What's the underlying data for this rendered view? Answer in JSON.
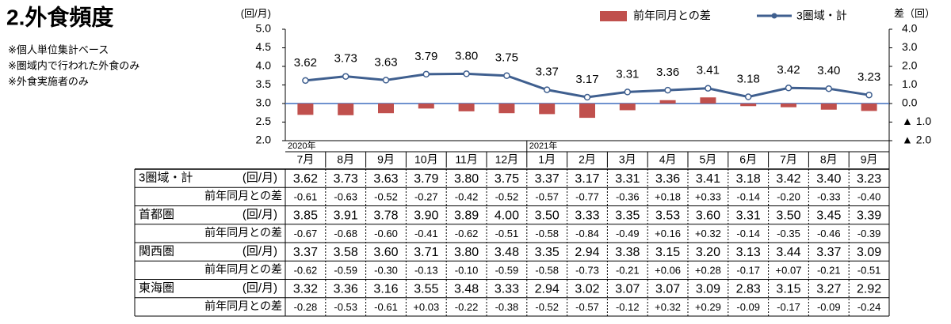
{
  "title": "2.外食頻度",
  "notes": [
    "※個人単位集計ベース",
    "※圏域内で行われた外食のみ",
    "※外食実施者のみ"
  ],
  "chart_data": {
    "type": "bar-line",
    "categories": [
      "7月",
      "8月",
      "9月",
      "10月",
      "11月",
      "12月",
      "1月",
      "2月",
      "3月",
      "4月",
      "5月",
      "6月",
      "7月",
      "8月",
      "9月"
    ],
    "years": [
      "2020年",
      null,
      null,
      null,
      null,
      null,
      "2021年",
      null,
      null,
      null,
      null,
      null,
      null,
      null,
      null
    ],
    "y_label": "(回/月)",
    "y2_label": "差（回）",
    "ylim": [
      2,
      5
    ],
    "yticks": [
      {
        "value": 2,
        "label": "2.0"
      },
      {
        "value": 2.5,
        "label": "2.5"
      },
      {
        "value": 3,
        "label": "3.0"
      },
      {
        "value": 3.5,
        "label": "3.5"
      },
      {
        "value": 4,
        "label": "4.0"
      },
      {
        "value": 4.5,
        "label": "4.5"
      },
      {
        "value": 5,
        "label": "5.0"
      }
    ],
    "y2lim": [
      -2,
      4
    ],
    "y2ticks": [
      {
        "value": -2,
        "label": "▲ 2.0"
      },
      {
        "value": -1,
        "label": "▲ 1.0"
      },
      {
        "value": 0,
        "label": "0.0"
      },
      {
        "value": 1,
        "label": "1.0"
      },
      {
        "value": 2,
        "label": "2.0"
      },
      {
        "value": 3,
        "label": "3.0"
      },
      {
        "value": 4,
        "label": "4.0"
      }
    ],
    "grid": false,
    "legend": "top",
    "series": [
      {
        "name": "前年同月との差",
        "type": "bar",
        "axis": "y2",
        "color": "#c0504d",
        "values": [
          -0.61,
          -0.63,
          -0.52,
          -0.27,
          -0.42,
          -0.52,
          -0.57,
          -0.77,
          -0.36,
          0.18,
          0.33,
          -0.14,
          -0.2,
          -0.33,
          -0.4
        ]
      },
      {
        "name": "3圏域・計",
        "type": "line",
        "color": "#3f5f8f",
        "values": [
          3.62,
          3.73,
          3.63,
          3.79,
          3.8,
          3.75,
          3.37,
          3.17,
          3.31,
          3.36,
          3.41,
          3.18,
          3.42,
          3.4,
          3.23
        ],
        "value_labels": [
          "3.62",
          "3.73",
          "3.63",
          "3.79",
          "3.80",
          "3.75",
          "3.37",
          "3.17",
          "3.31",
          "3.36",
          "3.41",
          "3.18",
          "3.42",
          "3.40",
          "3.23"
        ]
      }
    ]
  },
  "table": {
    "regions": [
      {
        "name": "3圏域・計",
        "unit": "(回/月)",
        "diff_label": "前年同月との差",
        "values": [
          "3.62",
          "3.73",
          "3.63",
          "3.79",
          "3.80",
          "3.75",
          "3.37",
          "3.17",
          "3.31",
          "3.36",
          "3.41",
          "3.18",
          "3.42",
          "3.40",
          "3.23"
        ],
        "diffs": [
          "-0.61",
          "-0.63",
          "-0.52",
          "-0.27",
          "-0.42",
          "-0.52",
          "-0.57",
          "-0.77",
          "-0.36",
          "+0.18",
          "+0.33",
          "-0.14",
          "-0.20",
          "-0.33",
          "-0.40"
        ]
      },
      {
        "name": "首都圏",
        "unit": "(回/月)",
        "diff_label": "前年同月との差",
        "values": [
          "3.85",
          "3.91",
          "3.78",
          "3.90",
          "3.89",
          "4.00",
          "3.50",
          "3.33",
          "3.35",
          "3.53",
          "3.60",
          "3.31",
          "3.50",
          "3.45",
          "3.39"
        ],
        "diffs": [
          "-0.67",
          "-0.68",
          "-0.60",
          "-0.41",
          "-0.62",
          "-0.51",
          "-0.58",
          "-0.84",
          "-0.49",
          "+0.16",
          "+0.32",
          "-0.14",
          "-0.35",
          "-0.46",
          "-0.39"
        ]
      },
      {
        "name": "関西圏",
        "unit": "(回/月)",
        "diff_label": "前年同月との差",
        "values": [
          "3.37",
          "3.58",
          "3.60",
          "3.71",
          "3.80",
          "3.48",
          "3.35",
          "2.94",
          "3.38",
          "3.15",
          "3.20",
          "3.13",
          "3.44",
          "3.37",
          "3.09"
        ],
        "diffs": [
          "-0.62",
          "-0.59",
          "-0.30",
          "-0.13",
          "-0.10",
          "-0.59",
          "-0.58",
          "-0.73",
          "-0.21",
          "+0.06",
          "+0.28",
          "-0.17",
          "+0.07",
          "-0.21",
          "-0.51"
        ]
      },
      {
        "name": "東海圏",
        "unit": "(回/月)",
        "diff_label": "前年同月との差",
        "values": [
          "3.32",
          "3.36",
          "3.16",
          "3.55",
          "3.48",
          "3.33",
          "2.94",
          "3.02",
          "3.07",
          "3.07",
          "3.09",
          "2.83",
          "3.15",
          "3.27",
          "2.92"
        ],
        "diffs": [
          "-0.28",
          "-0.53",
          "-0.61",
          "+0.03",
          "-0.22",
          "-0.38",
          "-0.52",
          "-0.57",
          "-0.12",
          "+0.32",
          "+0.29",
          "-0.09",
          "-0.17",
          "-0.09",
          "-0.24"
        ]
      }
    ]
  }
}
